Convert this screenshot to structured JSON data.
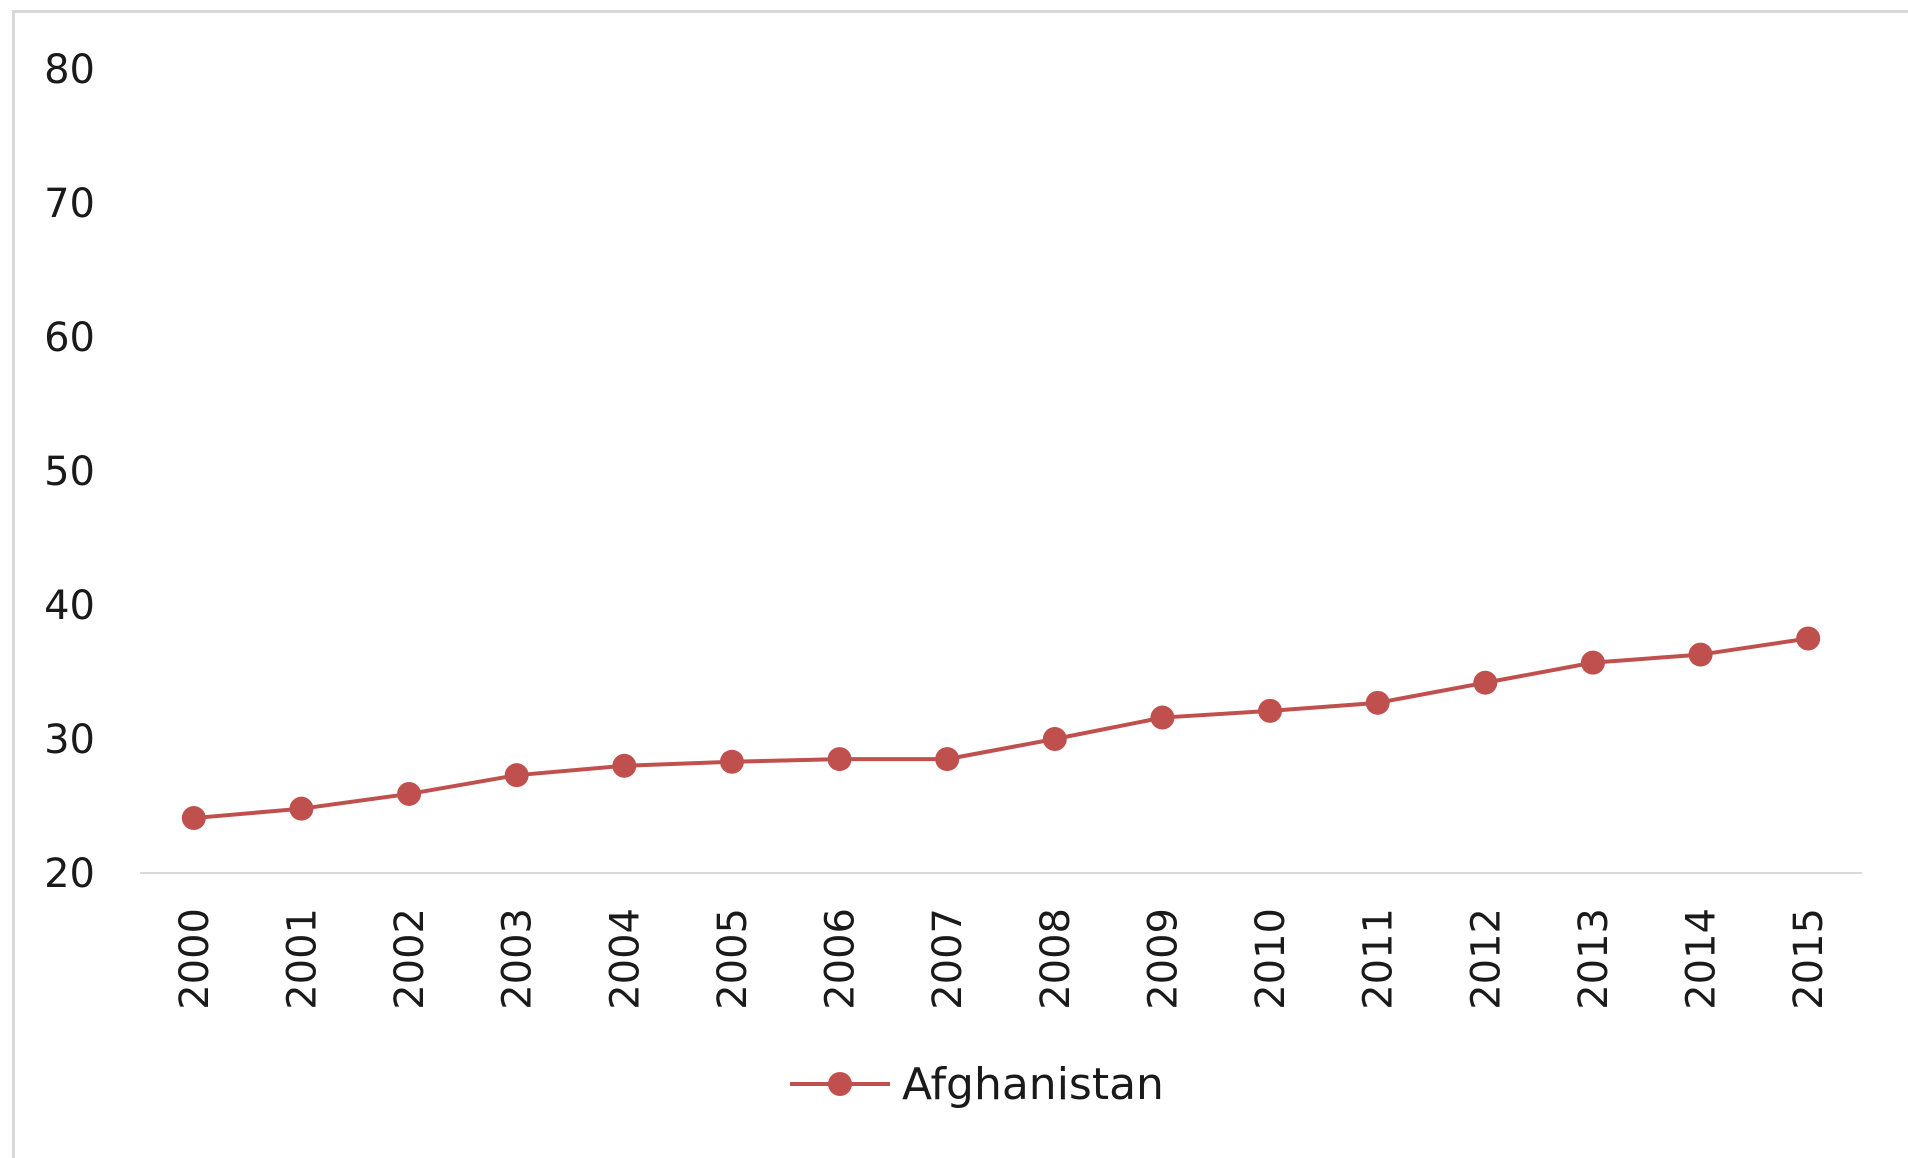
{
  "chart_data": {
    "type": "line",
    "title": "",
    "xlabel": "",
    "ylabel": "",
    "categories": [
      "2000",
      "2001",
      "2002",
      "2003",
      "2004",
      "2005",
      "2006",
      "2007",
      "2008",
      "2009",
      "2010",
      "2011",
      "2012",
      "2013",
      "2014",
      "2015"
    ],
    "series": [
      {
        "name": "Afghanistan",
        "color": "#c0504d",
        "values": [
          24.1,
          24.8,
          25.9,
          27.3,
          28.0,
          28.3,
          28.5,
          28.5,
          30.0,
          31.6,
          32.1,
          32.7,
          34.2,
          35.7,
          36.3,
          37.5
        ]
      }
    ],
    "ylim": [
      20,
      80
    ],
    "yticks": [
      20,
      30,
      40,
      50,
      60,
      70,
      80
    ],
    "grid": false,
    "legend_position": "bottom"
  }
}
